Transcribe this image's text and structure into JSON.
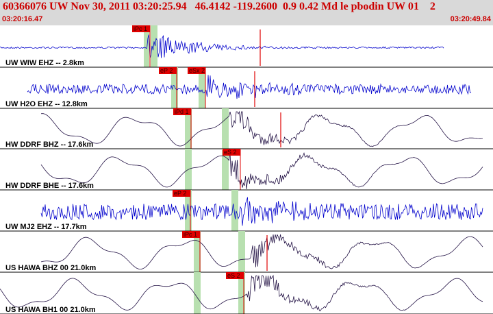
{
  "header": {
    "title": "60366076 UW Nov 30, 2011 03:20:25.94   46.4142 -119.2600  0.9 0.42 Md le pbodin UW 01    2",
    "start_time": "03:20:16.47",
    "end_time": "03:20:49.84"
  },
  "colors": {
    "header_bg": "#d9d9d9",
    "header_text": "#cc0000",
    "pick": "#e00000",
    "window": "#b8e0b0",
    "trace_blue": "#0000cc",
    "trace_dark": "#221144"
  },
  "traces": [
    {
      "label": "UW WIW EHZ -- 2.8km",
      "color": "blue",
      "style": "event",
      "pick": "iPc 1",
      "second_pick": ""
    },
    {
      "label": "UW H2O EHZ -- 12.8km",
      "color": "blue",
      "style": "noisy",
      "pick": "eP 2",
      "second_pick": "eSx 2"
    },
    {
      "label": "HW DDRF BHZ -- 17.6km",
      "color": "dark",
      "style": "wave",
      "pick": "iPd 1",
      "second_pick": ""
    },
    {
      "label": "HW DDRF BHE -- 17.6km",
      "color": "dark",
      "style": "wave",
      "pick": "eS 2",
      "second_pick": ""
    },
    {
      "label": "UW MJ2 EHZ -- 17.7km",
      "color": "blue",
      "style": "verynoisy",
      "pick": "eP 2",
      "second_pick": ""
    },
    {
      "label": "US HAWA BHZ 00 21.0km",
      "color": "dark",
      "style": "wave",
      "pick": "iPc 1",
      "second_pick": ""
    },
    {
      "label": "US HAWA BH1 00 21.0km",
      "color": "dark",
      "style": "wave",
      "pick": "eS 2",
      "second_pick": ""
    }
  ]
}
